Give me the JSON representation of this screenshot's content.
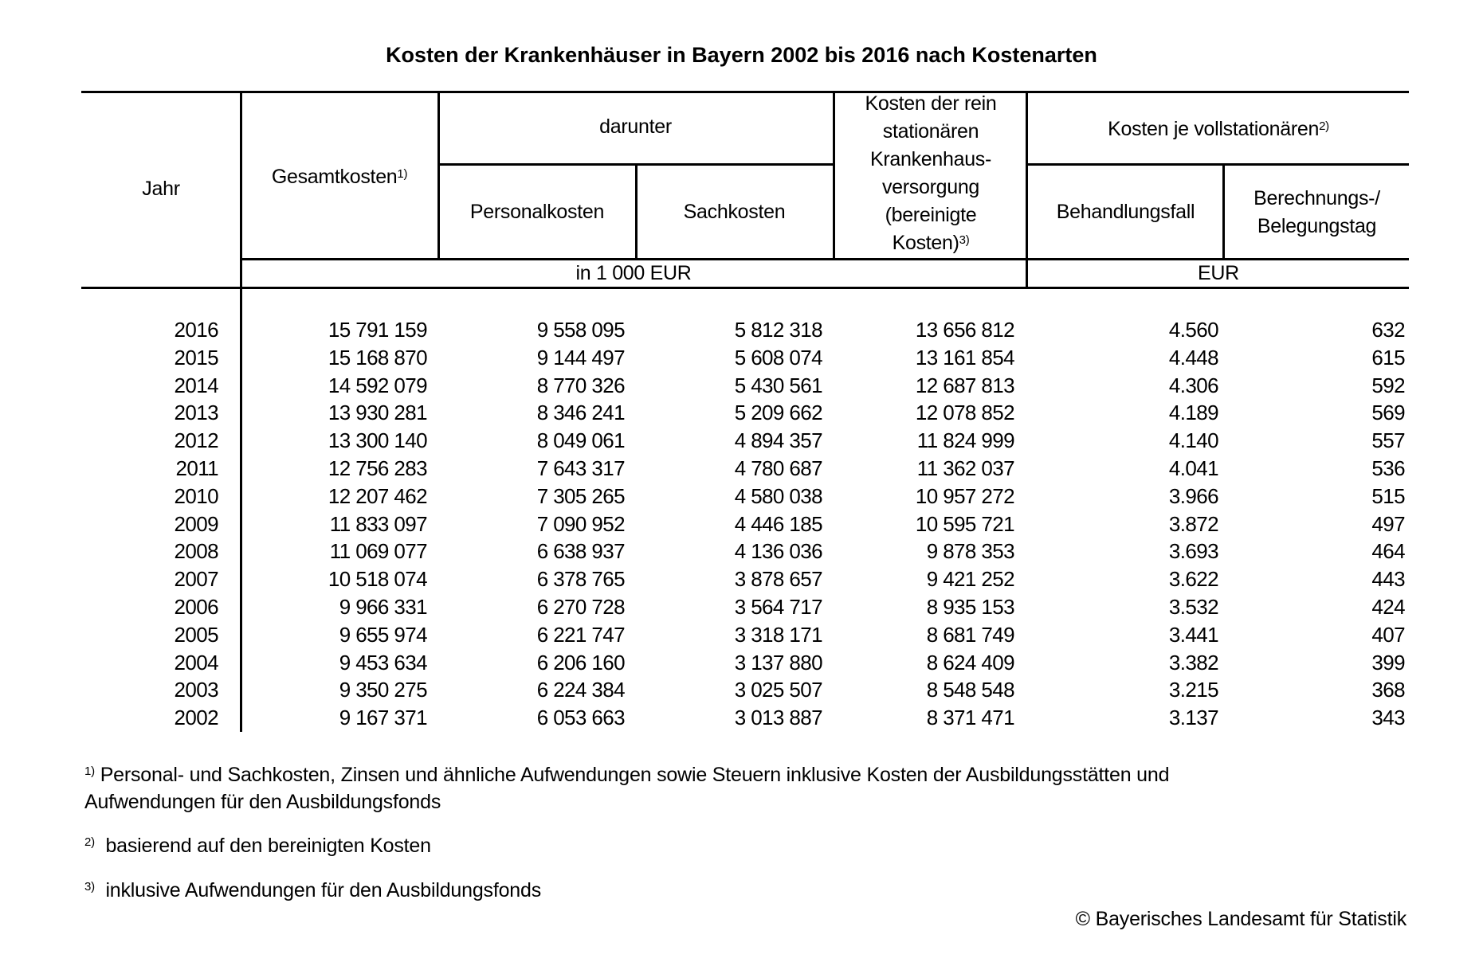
{
  "title": "Kosten der Krankenhäuser in Bayern 2002 bis 2016 nach Kostenarten",
  "headers": {
    "jahr": "Jahr",
    "gesamtkosten": "Gesamtkosten",
    "gesamtkosten_note": "1)",
    "darunter": "darunter",
    "personalkosten": "Personalkosten",
    "sachkosten": "Sachkosten",
    "rein_line1": "Kosten der rein",
    "rein_line2": "stationären",
    "rein_line3": "Krankenhaus-",
    "rein_line4": "versorgung",
    "rein_line5": "(bereinigte",
    "rein_line6": "Kosten)",
    "rein_note": "3)",
    "kosten_je": "Kosten je vollstationären",
    "kosten_je_note": "2)",
    "behandlungsfall": "Behandlungsfall",
    "berechnung_line1": "Berechnungs-/",
    "berechnung_line2": "Belegungstag",
    "unit_1000eur": "in 1 000 EUR",
    "unit_eur": "EUR"
  },
  "rows": [
    [
      "2016",
      "15 791 159",
      "9 558 095",
      "5 812 318",
      "13 656 812",
      "4.560",
      "632"
    ],
    [
      "2015",
      "15 168 870",
      "9 144 497",
      "5 608 074",
      "13 161 854",
      "4.448",
      "615"
    ],
    [
      "2014",
      "14 592 079",
      "8 770 326",
      "5 430 561",
      "12 687 813",
      "4.306",
      "592"
    ],
    [
      "2013",
      "13 930 281",
      "8 346 241",
      "5 209 662",
      "12 078 852",
      "4.189",
      "569"
    ],
    [
      "2012",
      "13 300 140",
      "8 049 061",
      "4 894 357",
      "11 824 999",
      "4.140",
      "557"
    ],
    [
      "2011",
      "12 756 283",
      "7 643 317",
      "4 780 687",
      "11 362 037",
      "4.041",
      "536"
    ],
    [
      "2010",
      "12 207 462",
      "7 305 265",
      "4 580 038",
      "10 957 272",
      "3.966",
      "515"
    ],
    [
      "2009",
      "11 833 097",
      "7 090 952",
      "4 446 185",
      "10 595 721",
      "3.872",
      "497"
    ],
    [
      "2008",
      "11 069 077",
      "6 638 937",
      "4 136 036",
      "9 878 353",
      "3.693",
      "464"
    ],
    [
      "2007",
      "10 518 074",
      "6 378 765",
      "3 878 657",
      "9 421 252",
      "3.622",
      "443"
    ],
    [
      "2006",
      "9 966 331",
      "6 270 728",
      "3 564 717",
      "8 935 153",
      "3.532",
      "424"
    ],
    [
      "2005",
      "9 655 974",
      "6 221 747",
      "3 318 171",
      "8 681 749",
      "3.441",
      "407"
    ],
    [
      "2004",
      "9 453 634",
      "6 206 160",
      "3 137 880",
      "8 624 409",
      "3.382",
      "399"
    ],
    [
      "2003",
      "9 350 275",
      "6 224 384",
      "3 025 507",
      "8 548 548",
      "3.215",
      "368"
    ],
    [
      "2002",
      "9 167 371",
      "6 053 663",
      "3 013 887",
      "8 371 471",
      "3.137",
      "343"
    ]
  ],
  "footnotes": {
    "f1_mark": "1)",
    "f1_line1": "Personal- und Sachkosten, Zinsen und ähnliche Aufwendungen sowie Steuern inklusive Kosten der Ausbildungsstätten und",
    "f1_line2": "Aufwendungen für den Ausbildungsfonds",
    "f2_mark": "2)",
    "f2_text": "basierend auf den bereinigten Kosten",
    "f3_mark": "3)",
    "f3_text": "inklusive Aufwendungen für den Ausbildungsfonds"
  },
  "copyright": "© Bayerisches Landesamt für Statistik"
}
